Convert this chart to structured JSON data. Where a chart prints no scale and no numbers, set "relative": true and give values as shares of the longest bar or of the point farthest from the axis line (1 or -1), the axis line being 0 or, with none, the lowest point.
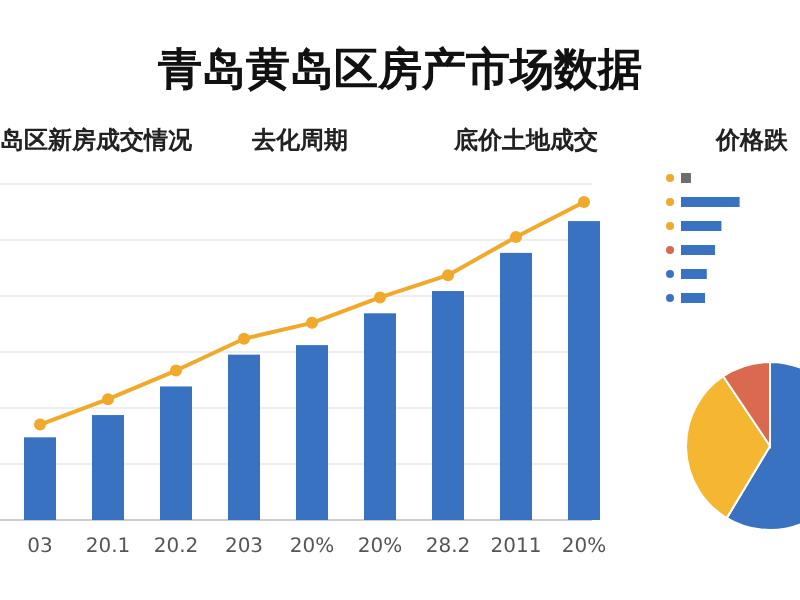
{
  "chart_data": [
    {
      "type": "bar",
      "title": "青岛黄岛区房产市场数据",
      "subtitle": "岛区新房成交情况",
      "annotations": [
        "去化周期",
        "底价土地成交"
      ],
      "relative": true,
      "grid": "y",
      "categories": [
        "03",
        "20.1",
        "20.2",
        "203",
        "20%",
        "20%",
        "28.2",
        "2011",
        "20%"
      ],
      "series": [
        {
          "type": "bar",
          "color": "#3a72c2",
          "values": [
            0.26,
            0.33,
            0.42,
            0.52,
            0.55,
            0.65,
            0.72,
            0.84,
            0.94
          ]
        },
        {
          "type": "line",
          "color": "#f0a92a",
          "marker": "circle",
          "values": [
            0.3,
            0.38,
            0.47,
            0.57,
            0.62,
            0.7,
            0.77,
            0.89,
            1.0
          ]
        }
      ]
    },
    {
      "type": "bar",
      "orientation": "horizontal",
      "title": "价格跌",
      "relative": true,
      "categories": [
        null,
        null,
        null,
        null,
        null,
        null
      ],
      "values": [
        0.17,
        1,
        0.69,
        0.58,
        0.44,
        0.41
      ],
      "colors": [
        "#6d6d6d",
        "#3a72c2",
        "#3a72c2",
        "#3a72c2",
        "#3a72c2",
        "#3a72c2"
      ]
    },
    {
      "type": "pie",
      "categories": [
        null,
        null,
        null
      ],
      "values": [
        58.6,
        32,
        9.4
      ],
      "colors": [
        "#3a72c2",
        "#f5b731",
        "#d9694f"
      ]
    }
  ]
}
